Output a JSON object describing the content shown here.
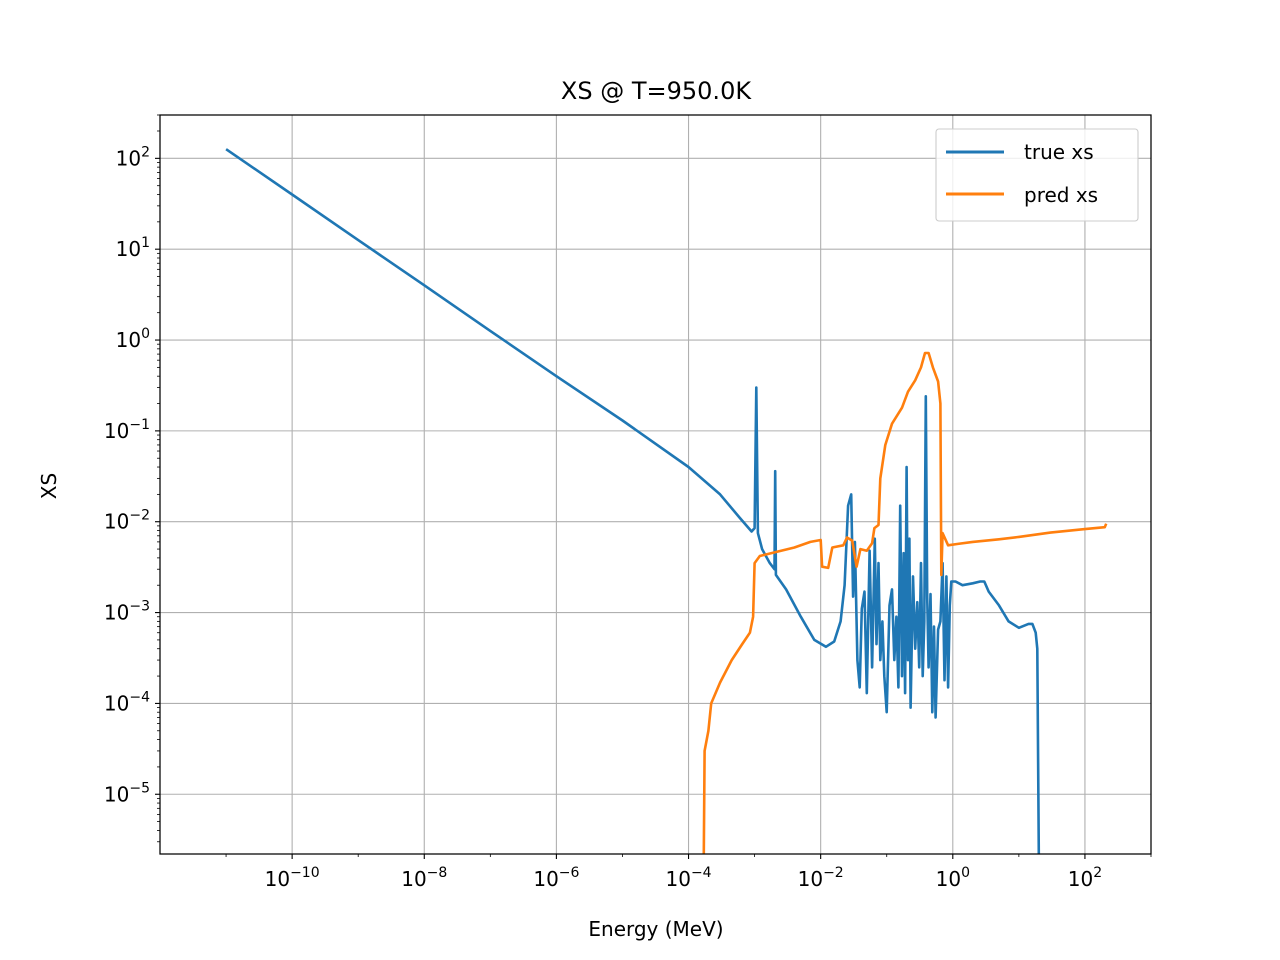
{
  "chart_data": {
    "type": "line",
    "title": "XS @ T=950.0K",
    "xlabel": "Energy (MeV)",
    "ylabel": "XS",
    "xscale": "log",
    "yscale": "log",
    "xlim": [
      1e-12,
      1000
    ],
    "ylim": [
      2.2e-06,
      300
    ],
    "xticks": [
      {
        "value": 1e-10,
        "base": "10",
        "exp": "−10"
      },
      {
        "value": 1e-08,
        "base": "10",
        "exp": "−8"
      },
      {
        "value": 1e-06,
        "base": "10",
        "exp": "−6"
      },
      {
        "value": 0.0001,
        "base": "10",
        "exp": "−4"
      },
      {
        "value": 0.01,
        "base": "10",
        "exp": "−2"
      },
      {
        "value": 1,
        "base": "10",
        "exp": "0"
      },
      {
        "value": 100,
        "base": "10",
        "exp": "2"
      }
    ],
    "yticks": [
      {
        "value": 1e-05,
        "base": "10",
        "exp": "−5"
      },
      {
        "value": 0.0001,
        "base": "10",
        "exp": "−4"
      },
      {
        "value": 0.001,
        "base": "10",
        "exp": "−3"
      },
      {
        "value": 0.01,
        "base": "10",
        "exp": "−2"
      },
      {
        "value": 0.1,
        "base": "10",
        "exp": "−1"
      },
      {
        "value": 1,
        "base": "10",
        "exp": "0"
      },
      {
        "value": 10,
        "base": "10",
        "exp": "1"
      },
      {
        "value": 100,
        "base": "10",
        "exp": "2"
      }
    ],
    "grid": true,
    "legend_position": "top-right",
    "series": [
      {
        "name": "true xs",
        "color": "#1f77b4",
        "points": [
          [
            1e-11,
            126
          ],
          [
            1e-10,
            40
          ],
          [
            1e-09,
            12.6
          ],
          [
            1e-08,
            4
          ],
          [
            1e-07,
            1.26
          ],
          [
            1e-06,
            0.4
          ],
          [
            1e-05,
            0.13
          ],
          [
            0.0001,
            0.04
          ],
          [
            0.0003,
            0.02
          ],
          [
            0.0006,
            0.011
          ],
          [
            0.0009,
            0.0078
          ],
          [
            0.001,
            0.0085
          ],
          [
            0.00106,
            0.3
          ],
          [
            0.00112,
            0.0075
          ],
          [
            0.0013,
            0.005
          ],
          [
            0.0017,
            0.0035
          ],
          [
            0.002,
            0.003
          ],
          [
            0.00205,
            0.036
          ],
          [
            0.0021,
            0.0026
          ],
          [
            0.003,
            0.0018
          ],
          [
            0.005,
            0.0009
          ],
          [
            0.008,
            0.0005
          ],
          [
            0.012,
            0.00042
          ],
          [
            0.016,
            0.00048
          ],
          [
            0.02,
            0.0008
          ],
          [
            0.023,
            0.002
          ],
          [
            0.026,
            0.015
          ],
          [
            0.029,
            0.02
          ],
          [
            0.031,
            0.0015
          ],
          [
            0.033,
            0.006
          ],
          [
            0.036,
            0.0003
          ],
          [
            0.039,
            0.00015
          ],
          [
            0.042,
            0.0011
          ],
          [
            0.046,
            0.0017
          ],
          [
            0.05,
            0.00013
          ],
          [
            0.055,
            0.0048
          ],
          [
            0.06,
            0.00025
          ],
          [
            0.066,
            0.0065
          ],
          [
            0.07,
            0.00045
          ],
          [
            0.075,
            0.0035
          ],
          [
            0.08,
            0.0003
          ],
          [
            0.086,
            0.0008
          ],
          [
            0.092,
            0.0002
          ],
          [
            0.1,
            8e-05
          ],
          [
            0.11,
            0.0012
          ],
          [
            0.12,
            0.0018
          ],
          [
            0.13,
            0.0003
          ],
          [
            0.14,
            0.0009
          ],
          [
            0.15,
            0.00015
          ],
          [
            0.16,
            0.015
          ],
          [
            0.17,
            0.0002
          ],
          [
            0.18,
            0.0045
          ],
          [
            0.19,
            0.00013
          ],
          [
            0.2,
            0.04
          ],
          [
            0.21,
            0.0003
          ],
          [
            0.22,
            0.0065
          ],
          [
            0.23,
            9e-05
          ],
          [
            0.25,
            0.0025
          ],
          [
            0.27,
            0.0004
          ],
          [
            0.29,
            0.0013
          ],
          [
            0.31,
            0.00025
          ],
          [
            0.33,
            0.0035
          ],
          [
            0.35,
            0.0002
          ],
          [
            0.37,
            0.0008
          ],
          [
            0.39,
            0.24
          ],
          [
            0.41,
            0.0015
          ],
          [
            0.43,
            0.00025
          ],
          [
            0.46,
            0.0016
          ],
          [
            0.49,
            8e-05
          ],
          [
            0.52,
            0.0007
          ],
          [
            0.55,
            7e-05
          ],
          [
            0.6,
            0.00065
          ],
          [
            0.65,
            0.0008
          ],
          [
            0.7,
            0.0035
          ],
          [
            0.75,
            0.00018
          ],
          [
            0.8,
            0.0025
          ],
          [
            0.85,
            0.00015
          ],
          [
            0.9,
            0.0012
          ],
          [
            0.95,
            0.0022
          ],
          [
            1.1,
            0.0022
          ],
          [
            1.4,
            0.002
          ],
          [
            2.0,
            0.0021
          ],
          [
            2.6,
            0.0022
          ],
          [
            3.0,
            0.0022
          ],
          [
            3.5,
            0.0017
          ],
          [
            5,
            0.0012
          ],
          [
            7,
            0.0008
          ],
          [
            10,
            0.00068
          ],
          [
            14,
            0.00075
          ],
          [
            16,
            0.00075
          ],
          [
            18,
            0.0006
          ],
          [
            19,
            0.0004
          ],
          [
            20,
            2.2e-06
          ]
        ]
      },
      {
        "name": "pred xs",
        "color": "#ff7f0e",
        "points": [
          [
            0.00017,
            2.2e-06
          ],
          [
            0.000175,
            3e-05
          ],
          [
            0.0002,
            5e-05
          ],
          [
            0.00022,
            0.0001
          ],
          [
            0.0003,
            0.00017
          ],
          [
            0.00045,
            0.0003
          ],
          [
            0.00065,
            0.00045
          ],
          [
            0.00085,
            0.0006
          ],
          [
            0.00095,
            0.0009
          ],
          [
            0.001,
            0.0035
          ],
          [
            0.0012,
            0.0042
          ],
          [
            0.002,
            0.0046
          ],
          [
            0.004,
            0.0052
          ],
          [
            0.007,
            0.006
          ],
          [
            0.01,
            0.0063
          ],
          [
            0.0105,
            0.0032
          ],
          [
            0.013,
            0.0031
          ],
          [
            0.015,
            0.0052
          ],
          [
            0.022,
            0.0055
          ],
          [
            0.025,
            0.0067
          ],
          [
            0.03,
            0.0062
          ],
          [
            0.035,
            0.0032
          ],
          [
            0.04,
            0.005
          ],
          [
            0.05,
            0.0048
          ],
          [
            0.06,
            0.0058
          ],
          [
            0.065,
            0.0085
          ],
          [
            0.075,
            0.0092
          ],
          [
            0.08,
            0.03
          ],
          [
            0.095,
            0.07
          ],
          [
            0.12,
            0.12
          ],
          [
            0.17,
            0.18
          ],
          [
            0.21,
            0.27
          ],
          [
            0.27,
            0.36
          ],
          [
            0.33,
            0.5
          ],
          [
            0.38,
            0.72
          ],
          [
            0.43,
            0.72
          ],
          [
            0.5,
            0.5
          ],
          [
            0.6,
            0.35
          ],
          [
            0.65,
            0.2
          ],
          [
            0.67,
            0.0026
          ],
          [
            0.7,
            0.0075
          ],
          [
            0.85,
            0.0055
          ],
          [
            1.2,
            0.0057
          ],
          [
            2,
            0.006
          ],
          [
            5,
            0.0064
          ],
          [
            10,
            0.0068
          ],
          [
            30,
            0.0076
          ],
          [
            100,
            0.0083
          ],
          [
            200,
            0.0087
          ],
          [
            210,
            0.0095
          ]
        ]
      }
    ]
  }
}
